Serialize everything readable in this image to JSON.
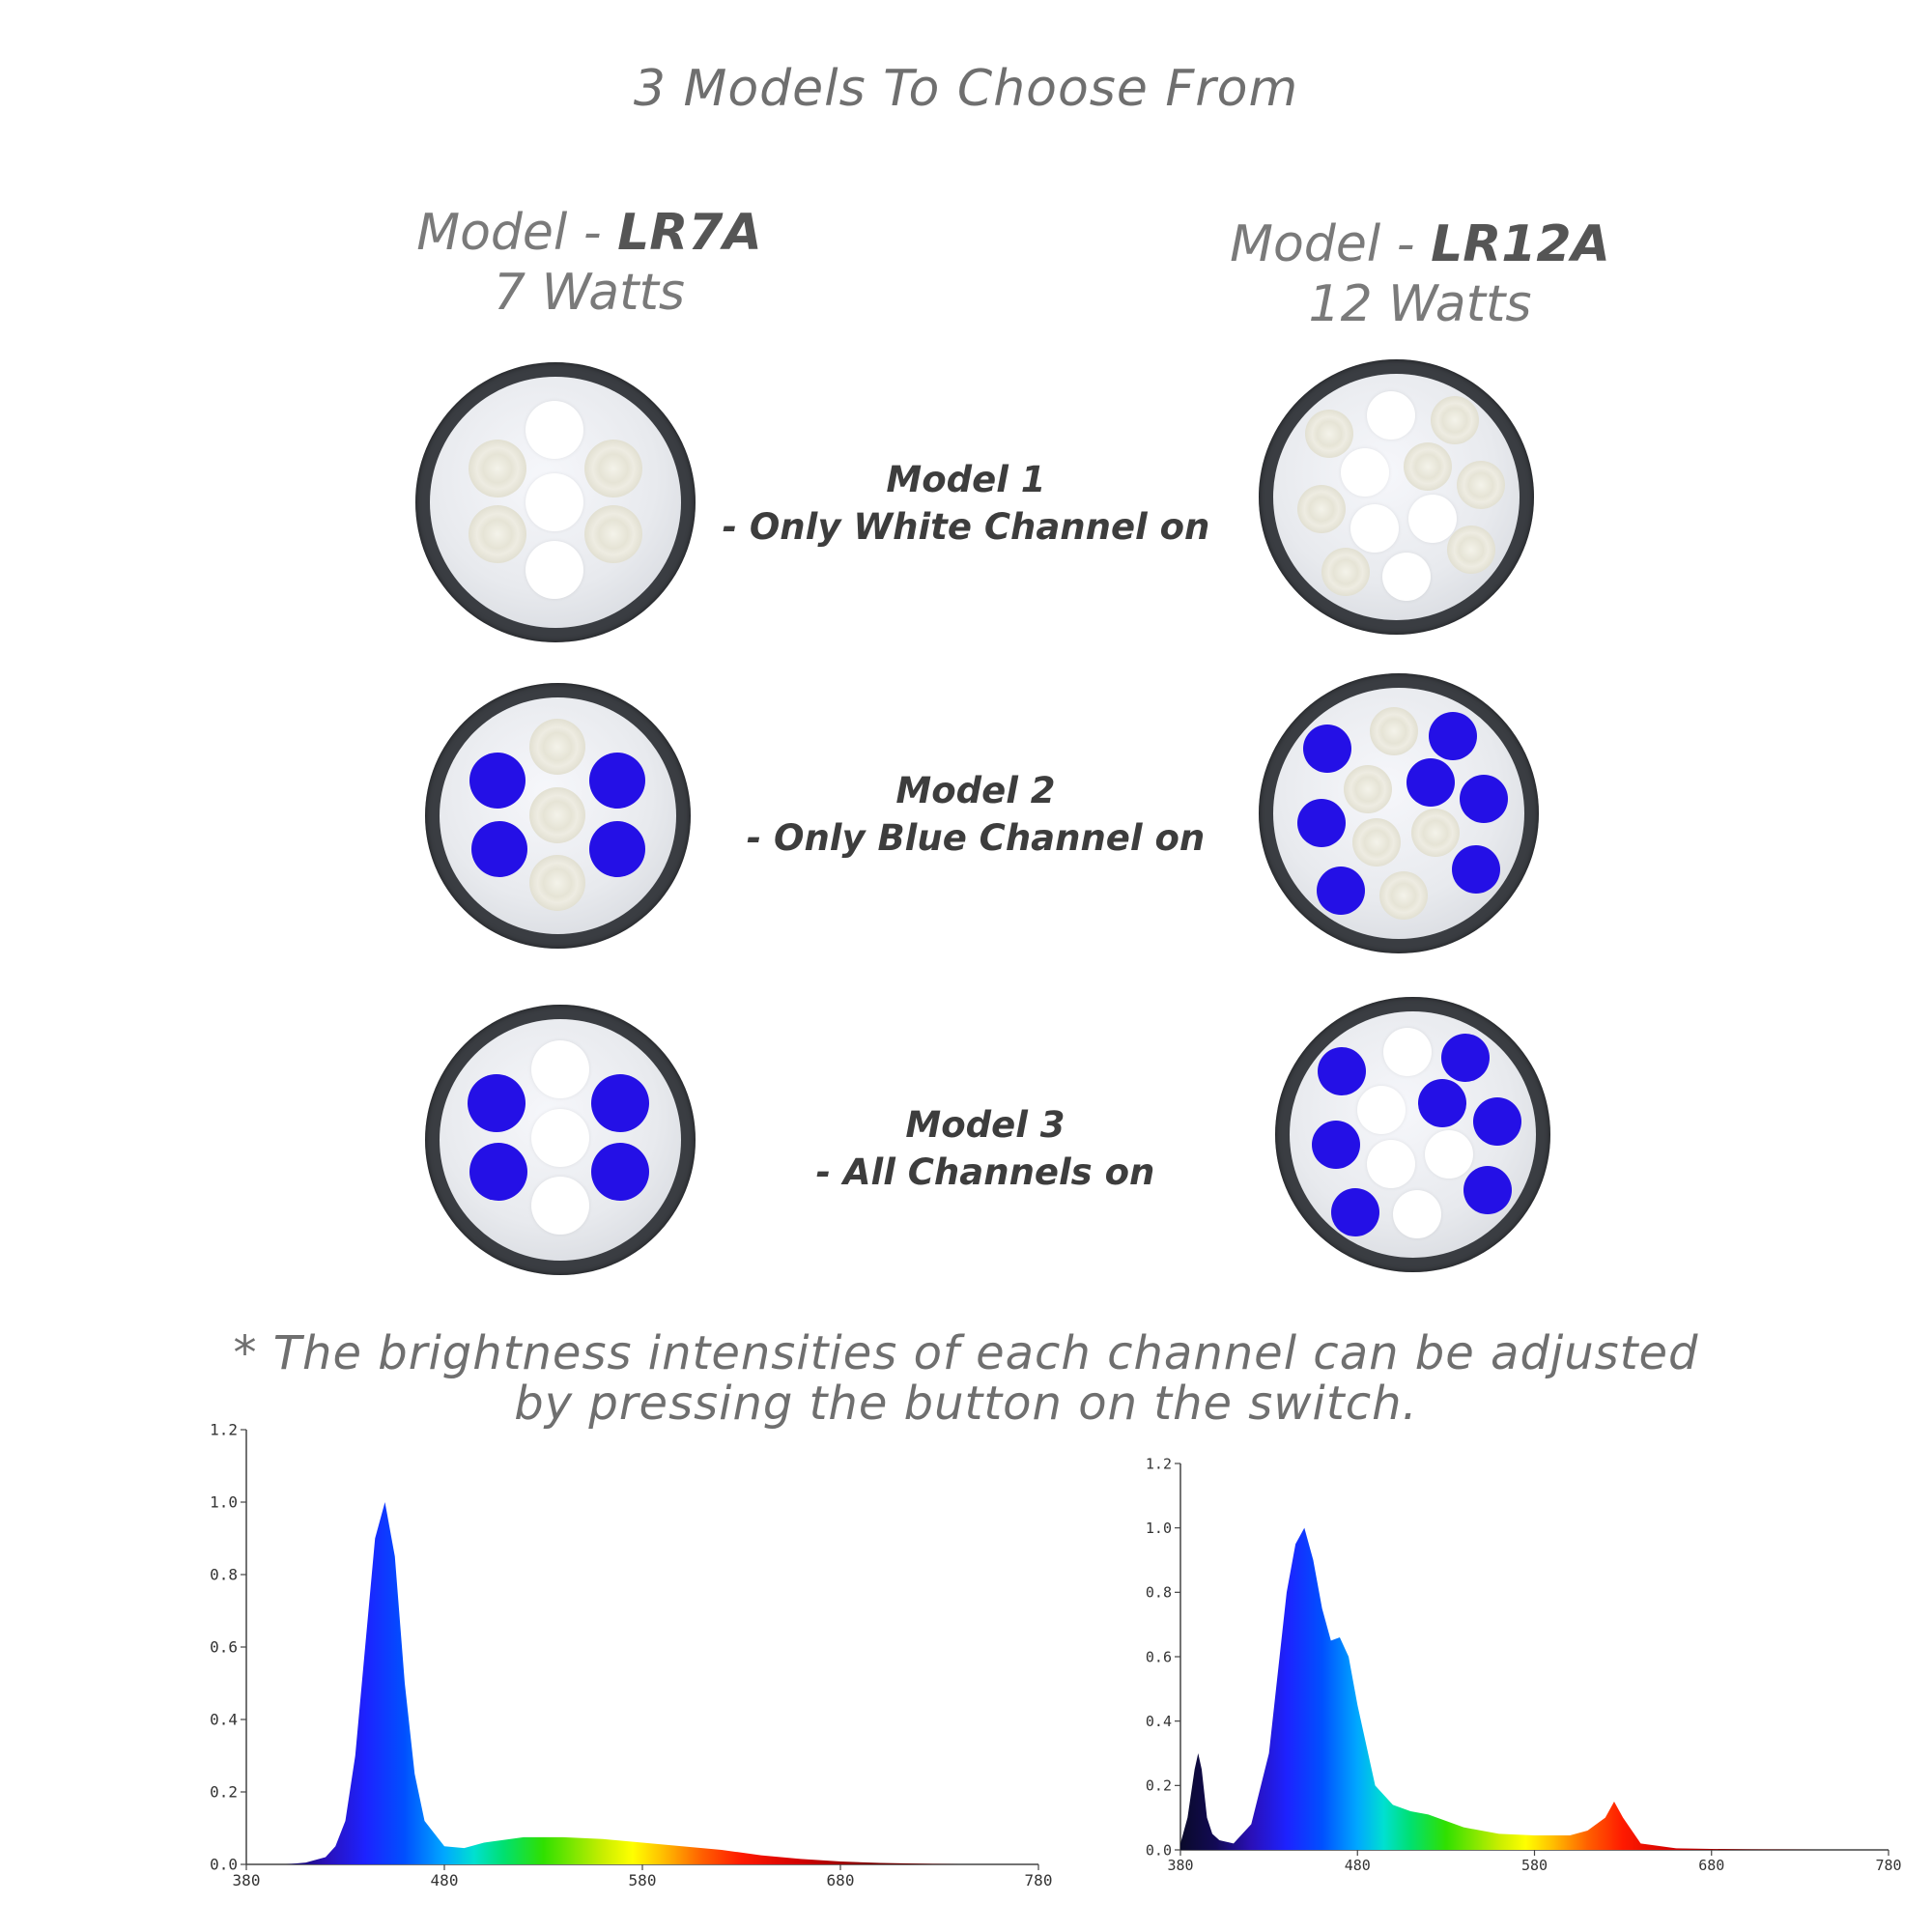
{
  "title": "3 Models To Choose From",
  "models": [
    {
      "label": "Model - ",
      "name": "LR7A",
      "watts": "7 Watts"
    },
    {
      "label": "Model - ",
      "name": "LR12A",
      "watts": "12 Watts"
    }
  ],
  "modes": [
    {
      "title": "Model 1",
      "desc": "- Only White Channel on"
    },
    {
      "title": "Model 2",
      "desc": "- Only Blue Channel on"
    },
    {
      "title": "Model 3",
      "desc": "- All Channels on"
    }
  ],
  "note_line1": "* The brightness intensities of each channel can be adjusted",
  "note_line2": "by pressing the button on the switch.",
  "colors": {
    "blue_led": "#2410e6",
    "white_led": "#ffffff",
    "ring": "#3a3d42"
  },
  "chart_data": [
    {
      "type": "area",
      "title": "",
      "xlabel": "",
      "ylabel": "",
      "xlim": [
        380,
        780
      ],
      "ylim": [
        0,
        1.2
      ],
      "x_ticks": [
        "380",
        "480",
        "580",
        "680",
        "780"
      ],
      "y_ticks": [
        "0.0",
        "0.2",
        "0.4",
        "0.6",
        "0.8",
        "1.0",
        "1.2"
      ],
      "x": [
        380,
        400,
        410,
        420,
        425,
        430,
        435,
        440,
        445,
        450,
        455,
        460,
        465,
        470,
        480,
        490,
        500,
        520,
        540,
        560,
        580,
        600,
        620,
        640,
        660,
        680,
        700,
        720,
        740
      ],
      "y": [
        0.0,
        0.0,
        0.005,
        0.02,
        0.05,
        0.12,
        0.3,
        0.6,
        0.9,
        1.0,
        0.85,
        0.5,
        0.25,
        0.12,
        0.05,
        0.045,
        0.06,
        0.075,
        0.075,
        0.07,
        0.06,
        0.05,
        0.04,
        0.025,
        0.015,
        0.008,
        0.004,
        0.002,
        0.0
      ]
    },
    {
      "type": "area",
      "title": "",
      "xlabel": "",
      "ylabel": "",
      "xlim": [
        380,
        780
      ],
      "ylim": [
        0,
        1.2
      ],
      "x_ticks": [
        "380",
        "480",
        "580",
        "680",
        "780"
      ],
      "y_ticks": [
        "0.0",
        "0.2",
        "0.4",
        "0.6",
        "0.8",
        "1.0",
        "1.2"
      ],
      "x": [
        380,
        384,
        388,
        390,
        392,
        395,
        398,
        402,
        410,
        420,
        430,
        440,
        445,
        450,
        455,
        460,
        465,
        470,
        475,
        480,
        490,
        500,
        510,
        520,
        530,
        540,
        560,
        580,
        600,
        610,
        620,
        625,
        630,
        640,
        660,
        680,
        700,
        720,
        740
      ],
      "y": [
        0.02,
        0.1,
        0.25,
        0.3,
        0.25,
        0.1,
        0.05,
        0.03,
        0.02,
        0.08,
        0.3,
        0.8,
        0.95,
        1.0,
        0.9,
        0.75,
        0.65,
        0.66,
        0.6,
        0.45,
        0.2,
        0.14,
        0.12,
        0.11,
        0.09,
        0.07,
        0.05,
        0.045,
        0.045,
        0.06,
        0.1,
        0.15,
        0.1,
        0.02,
        0.005,
        0.003,
        0.002,
        0.001,
        0.0
      ]
    }
  ]
}
